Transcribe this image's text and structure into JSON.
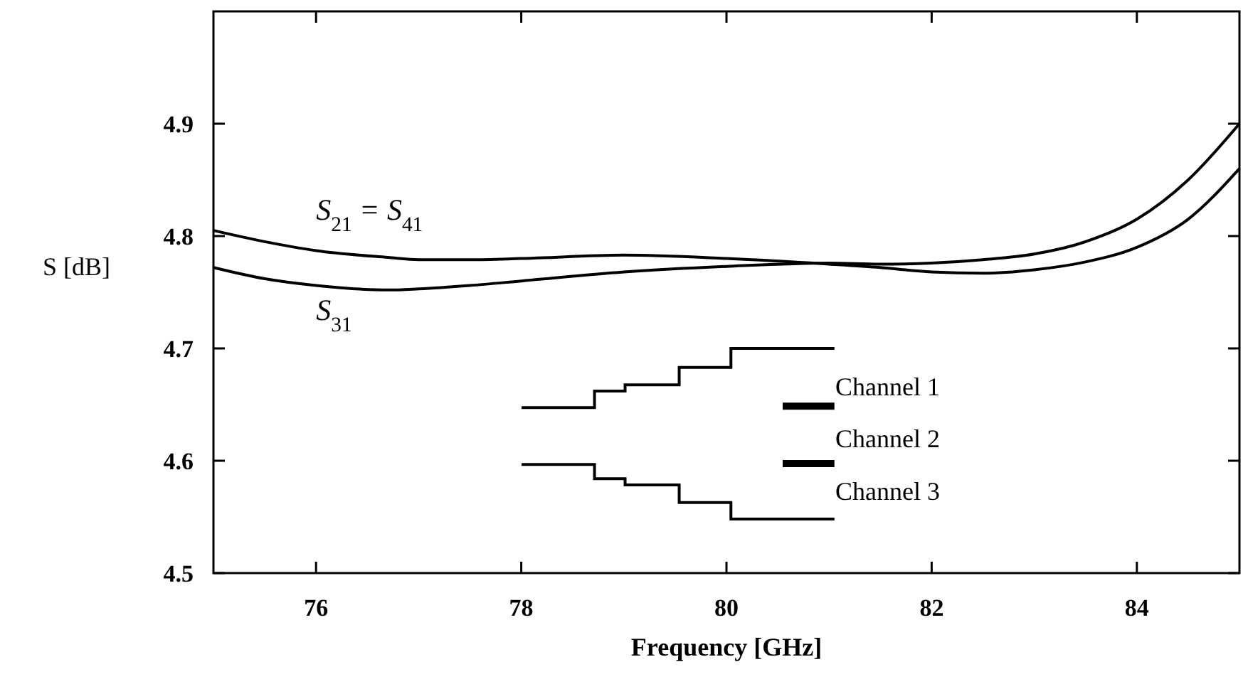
{
  "chart_data": {
    "type": "line",
    "xlabel": "Frequency [GHz]",
    "ylabel": "S [dB]",
    "xlim": [
      75,
      85
    ],
    "xticks": [
      76,
      78,
      80,
      82,
      84
    ],
    "ylim": [
      4.5,
      5.0
    ],
    "yticks": [
      4.5,
      4.6,
      4.7,
      4.8,
      4.9
    ],
    "grid": false,
    "marker": "none",
    "line_style": "solid",
    "x": [
      75,
      75.5,
      76,
      76.7,
      77,
      77.5,
      78,
      79,
      80,
      81,
      81.5,
      82,
      82.5,
      83,
      83.5,
      84,
      84.5,
      85
    ],
    "series": [
      {
        "name": "S$_{21}$ = S$_{41}$",
        "color": "#000000",
        "values": [
          4.805,
          4.795,
          4.787,
          4.781,
          4.779,
          4.779,
          4.78,
          4.783,
          4.78,
          4.775,
          4.772,
          4.768,
          4.767,
          4.77,
          4.777,
          4.79,
          4.815,
          4.86
        ]
      },
      {
        "name": "S$_{31}$",
        "color": "#000000",
        "values": [
          4.772,
          4.762,
          4.756,
          4.752,
          4.753,
          4.756,
          4.76,
          4.768,
          4.773,
          4.776,
          4.775,
          4.776,
          4.779,
          4.784,
          4.795,
          4.815,
          4.85,
          4.9
        ]
      }
    ],
    "annotations": [
      "Channel 1",
      "Channel 2",
      "Channel 3"
    ]
  }
}
